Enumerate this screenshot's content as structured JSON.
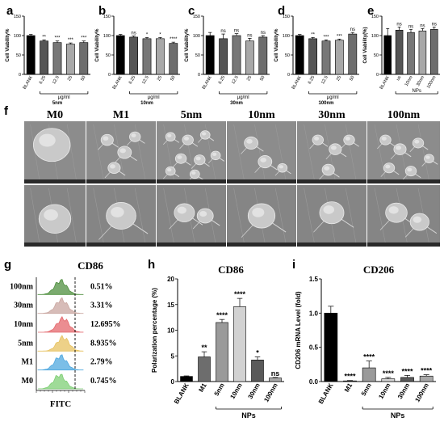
{
  "chart_data": [
    {
      "panel": "a",
      "type": "bar",
      "title": "",
      "categories": [
        "BLANK",
        "6.25",
        "12.5",
        "25",
        "50"
      ],
      "values": [
        100,
        86,
        82,
        78,
        82
      ],
      "errors": [
        3,
        3,
        4,
        3,
        4
      ],
      "colors": [
        "#000000",
        "#555555",
        "#777777",
        "#a8a8a8",
        "#6d6d6d"
      ],
      "significance": [
        "",
        "**",
        "***",
        "***",
        "***"
      ],
      "ylabel": "Cell Viability%",
      "ylim": [
        0,
        150
      ],
      "yticks": [
        0,
        50,
        100,
        150
      ],
      "group_label": "μg/ml",
      "group_from": 1,
      "group_to": 4,
      "xlabel": "5nm"
    },
    {
      "panel": "b",
      "type": "bar",
      "title": "",
      "categories": [
        "BLANK",
        "6.25",
        "12.5",
        "25",
        "50"
      ],
      "values": [
        100,
        96,
        92,
        92,
        80
      ],
      "errors": [
        3,
        3,
        3,
        3,
        3
      ],
      "colors": [
        "#000000",
        "#555555",
        "#777777",
        "#a8a8a8",
        "#6d6d6d"
      ],
      "significance": [
        "",
        "ns",
        "*",
        "*",
        "****"
      ],
      "ylabel": "Cell Viability%",
      "ylim": [
        0,
        150
      ],
      "yticks": [
        0,
        50,
        100,
        150
      ],
      "group_label": "μg/ml",
      "group_from": 1,
      "group_to": 4,
      "xlabel": "10nm"
    },
    {
      "panel": "c",
      "type": "bar",
      "title": "",
      "categories": [
        "BLANK",
        "6.25",
        "12.5",
        "25",
        "50"
      ],
      "values": [
        100,
        92,
        100,
        86,
        96
      ],
      "errors": [
        8,
        12,
        5,
        7,
        4
      ],
      "colors": [
        "#000000",
        "#555555",
        "#777777",
        "#a8a8a8",
        "#6d6d6d"
      ],
      "significance": [
        "",
        "ns",
        "ns",
        "ns",
        "ns"
      ],
      "ylabel": "Cell Viability%",
      "ylim": [
        0,
        150
      ],
      "yticks": [
        0,
        50,
        100,
        150
      ],
      "group_label": "μg/ml",
      "group_from": 1,
      "group_to": 4,
      "xlabel": "30nm"
    },
    {
      "panel": "d",
      "type": "bar",
      "title": "",
      "categories": [
        "BLANK",
        "6.25",
        "12.5",
        "25",
        "50"
      ],
      "values": [
        100,
        92,
        86,
        88,
        104
      ],
      "errors": [
        3,
        3,
        3,
        3,
        4
      ],
      "colors": [
        "#000000",
        "#555555",
        "#777777",
        "#a8a8a8",
        "#6d6d6d"
      ],
      "significance": [
        "",
        "**",
        "***",
        "***",
        "ns"
      ],
      "ylabel": "Cell Viability%",
      "ylim": [
        0,
        150
      ],
      "yticks": [
        0,
        50,
        100,
        150
      ],
      "group_label": "μg/ml",
      "group_from": 1,
      "group_to": 4,
      "xlabel": "100nm"
    },
    {
      "panel": "e",
      "type": "bar",
      "title": "",
      "categories": [
        "BLANK",
        "us",
        "10nm",
        "30nm",
        "100nm"
      ],
      "values": [
        100,
        114,
        108,
        112,
        116
      ],
      "errors": [
        18,
        8,
        8,
        6,
        6
      ],
      "colors": [
        "#000000",
        "#555555",
        "#777777",
        "#a8a8a8",
        "#6d6d6d"
      ],
      "significance": [
        "",
        "ns",
        "ns",
        "ns",
        "ns"
      ],
      "ylabel": "Cell Viability(%)",
      "ylim": [
        0,
        150
      ],
      "yticks": [
        0,
        50,
        100,
        150
      ],
      "group_label": "NPs",
      "group_from": 1,
      "group_to": 4,
      "xlabel": ""
    },
    {
      "panel": "h",
      "type": "bar",
      "title": "CD86",
      "categories": [
        "BLANK",
        "M1",
        "5nm",
        "10nm",
        "30nm",
        "100nm"
      ],
      "values": [
        1.0,
        4.8,
        11.5,
        14.6,
        4.2,
        0.7
      ],
      "errors": [
        0.1,
        1.0,
        0.6,
        1.6,
        0.6,
        0.1
      ],
      "colors": [
        "#000000",
        "#6d6d6d",
        "#9a9a9a",
        "#d2d2d2",
        "#5a5a5a",
        "#a8a8a8"
      ],
      "significance": [
        "",
        "**",
        "****",
        "****",
        "*",
        "ns"
      ],
      "ylabel": "Polarization percentage (%)",
      "ylim": [
        0,
        20
      ],
      "yticks": [
        0,
        5,
        10,
        15,
        20
      ],
      "group_label": "NPs",
      "group_from": 2,
      "group_to": 5,
      "xlabel": ""
    },
    {
      "panel": "i",
      "type": "bar",
      "title": "CD206",
      "categories": [
        "BLANK",
        "M1",
        "5nm",
        "10nm",
        "30nm",
        "100nm"
      ],
      "values": [
        1.0,
        0.01,
        0.2,
        0.04,
        0.06,
        0.08
      ],
      "errors": [
        0.1,
        0.005,
        0.1,
        0.02,
        0.03,
        0.02
      ],
      "colors": [
        "#000000",
        "#6d6d6d",
        "#9a9a9a",
        "#d2d2d2",
        "#5a5a5a",
        "#a8a8a8"
      ],
      "significance": [
        "",
        "****",
        "****",
        "****",
        "****",
        "****"
      ],
      "ylabel": "CD206 mRNA Level (fold)",
      "ylim": [
        0,
        1.5
      ],
      "yticks": [
        0.0,
        0.5,
        1.0,
        1.5
      ],
      "group_label": "NPs",
      "group_from": 2,
      "group_to": 5,
      "xlabel": ""
    },
    {
      "panel": "g",
      "type": "area",
      "title": "CD86",
      "xlabel": "FITC",
      "series": [
        {
          "name": "100nm",
          "percent": "0.51%",
          "color": "#4f8f3f"
        },
        {
          "name": "30nm",
          "percent": "3.31%",
          "color": "#c9a6a0"
        },
        {
          "name": "10nm",
          "percent": "12.695%",
          "color": "#e4676c"
        },
        {
          "name": "5nm",
          "percent": "8.935%",
          "color": "#e7c260"
        },
        {
          "name": "M1",
          "percent": "2.79%",
          "color": "#4fa8df"
        },
        {
          "name": "M0",
          "percent": "0.745%",
          "color": "#7fcf75"
        }
      ]
    }
  ],
  "panel_letters": {
    "a": "a",
    "b": "b",
    "c": "c",
    "d": "d",
    "e": "e",
    "f": "f",
    "g": "g",
    "h": "h",
    "i": "i"
  },
  "sem": {
    "labels": [
      "M0",
      "M1",
      "5nm",
      "10nm",
      "30nm",
      "100nm"
    ]
  }
}
